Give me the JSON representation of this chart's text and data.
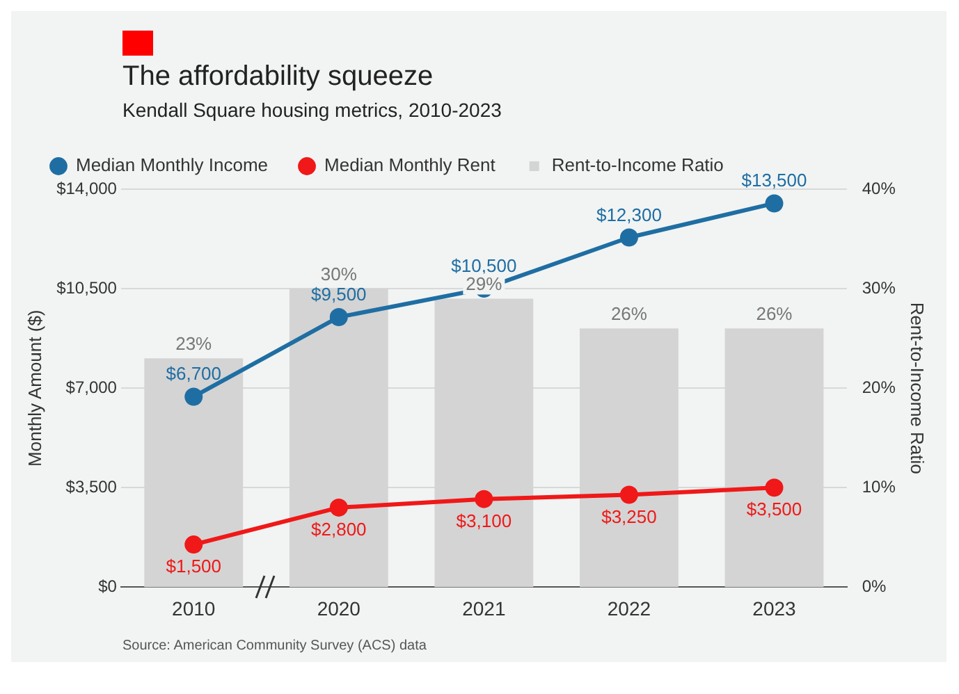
{
  "chart_data": {
    "type": "line",
    "title": "The affordability squeeze",
    "subtitle": "Kendall Square housing metrics, 2010-2023",
    "ylabel": "Monthly Amount ($)",
    "y2label": "Rent-to-Income Ratio",
    "categories": [
      "2010",
      "2020",
      "2021",
      "2022",
      "2023"
    ],
    "series": [
      {
        "name": "Median Monthly Income",
        "color": "#1f6ea3",
        "values": [
          6700,
          9500,
          10500,
          12300,
          13500
        ],
        "value_labels": [
          "$6,700",
          "$9,500",
          "$10,500",
          "$12,300",
          "$13,500"
        ]
      },
      {
        "name": "Median Monthly Rent",
        "color": "#f01818",
        "values": [
          1500,
          2800,
          3100,
          3250,
          3500
        ],
        "value_labels": [
          "$1,500",
          "$2,800",
          "$3,100",
          "$3,250",
          "$3,500"
        ]
      },
      {
        "name": "Rent-to-Income Ratio",
        "type": "bar",
        "axis": "y2",
        "color": "#d4d4d4",
        "values": [
          23,
          30,
          29,
          26,
          26
        ],
        "value_labels": [
          "23%",
          "30%",
          "29%",
          "26%",
          "26%"
        ]
      }
    ],
    "ylim": [
      0,
      14000
    ],
    "yticks": [
      {
        "value": 0,
        "label": "$0"
      },
      {
        "value": 3500,
        "label": "$3,500"
      },
      {
        "value": 7000,
        "label": "$7,000"
      },
      {
        "value": 10500,
        "label": "$10,500"
      },
      {
        "value": 14000,
        "label": "$14,000"
      }
    ],
    "y2lim": [
      0,
      40
    ],
    "y2ticks": [
      {
        "value": 0,
        "label": "0%"
      },
      {
        "value": 10,
        "label": "10%"
      },
      {
        "value": 20,
        "label": "20%"
      },
      {
        "value": 30,
        "label": "30%"
      },
      {
        "value": 40,
        "label": "40%"
      }
    ],
    "grid": "y",
    "legend": "top left",
    "marker": "circle",
    "line_style": "solid",
    "annotations": [
      "Source: American Community Survey (ACS) data"
    ]
  }
}
